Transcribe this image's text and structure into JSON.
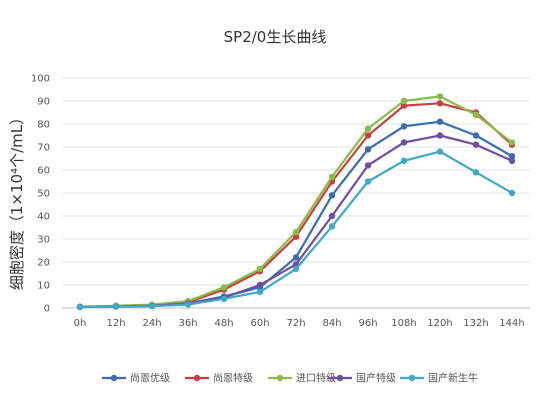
{
  "chart_data": {
    "type": "line",
    "title": "SP2/0生长曲线",
    "ylabel": "细胞密度（1×10⁴个/mL）",
    "xlabel": "",
    "categories": [
      "0h",
      "12h",
      "24h",
      "36h",
      "48h",
      "60h",
      "72h",
      "84h",
      "96h",
      "108h",
      "120h",
      "132h",
      "144h"
    ],
    "ylim": [
      0,
      100
    ],
    "yticks": [
      0,
      10,
      20,
      30,
      40,
      50,
      60,
      70,
      80,
      90,
      100
    ],
    "grid": true,
    "legend_position": "bottom",
    "series": [
      {
        "name": "尚恩优级",
        "color": "#3a6db3",
        "values": [
          0.5,
          0.8,
          1.0,
          2.0,
          5.0,
          9.0,
          22.0,
          49.0,
          69.0,
          79.0,
          81.0,
          75.0,
          66.0
        ]
      },
      {
        "name": "尚恩特级",
        "color": "#c94040",
        "values": [
          0.5,
          0.8,
          1.2,
          2.5,
          8.0,
          16.0,
          31.0,
          55.0,
          75.0,
          88.0,
          89.0,
          85.0,
          71.0
        ]
      },
      {
        "name": "进口特级",
        "color": "#8bbb48",
        "values": [
          0.5,
          1.0,
          1.5,
          3.0,
          9.0,
          17.0,
          33.0,
          57.0,
          78.0,
          90.0,
          92.0,
          84.0,
          72.0
        ]
      },
      {
        "name": "国产特级",
        "color": "#6e4fa3",
        "values": [
          0.5,
          0.7,
          0.9,
          2.0,
          4.5,
          10.0,
          19.0,
          40.0,
          62.0,
          72.0,
          75.0,
          71.0,
          64.0
        ]
      },
      {
        "name": "国产新生牛",
        "color": "#3fa9c6",
        "values": [
          0.4,
          0.6,
          0.8,
          1.5,
          4.0,
          7.0,
          17.0,
          35.5,
          55.0,
          64.0,
          68.0,
          59.0,
          50.0
        ]
      }
    ]
  }
}
